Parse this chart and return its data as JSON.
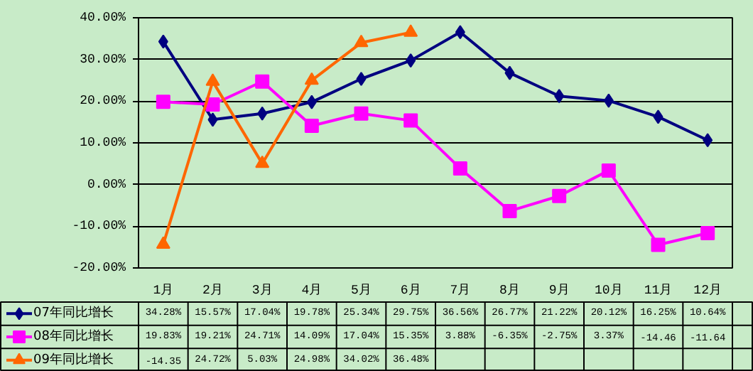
{
  "chart_data": {
    "type": "line",
    "categories": [
      "1月",
      "2月",
      "3月",
      "4月",
      "5月",
      "6月",
      "7月",
      "8月",
      "9月",
      "10月",
      "11月",
      "12月"
    ],
    "series": [
      {
        "name": "07年同比增长",
        "color": "#000080",
        "marker": "diamond",
        "values": [
          34.28,
          15.57,
          17.04,
          19.78,
          25.34,
          29.75,
          36.56,
          26.77,
          21.22,
          20.12,
          16.25,
          10.64
        ],
        "value_labels": [
          "34.28%",
          "15.57%",
          "17.04%",
          "19.78%",
          "25.34%",
          "29.75%",
          "36.56%",
          "26.77%",
          "21.22%",
          "20.12%",
          "16.25%",
          "10.64%"
        ]
      },
      {
        "name": "08年同比增长",
        "color": "#ff00ff",
        "marker": "square",
        "values": [
          19.83,
          19.21,
          24.71,
          14.09,
          17.04,
          15.35,
          3.88,
          -6.35,
          -2.75,
          3.37,
          -14.46,
          -11.64
        ],
        "value_labels": [
          "19.83%",
          "19.21%",
          "24.71%",
          "14.09%",
          "17.04%",
          "15.35%",
          "3.88%",
          "-6.35%",
          "-2.75%",
          "3.37%",
          "-14.46",
          "-11.64"
        ]
      },
      {
        "name": "09年同比增长",
        "color": "#ff6600",
        "marker": "triangle",
        "values": [
          -14.35,
          24.72,
          5.03,
          24.98,
          34.02,
          36.48,
          null,
          null,
          null,
          null,
          null,
          null
        ],
        "value_labels": [
          "-14.35",
          "24.72%",
          "5.03%",
          "24.98%",
          "34.02%",
          "36.48%",
          null,
          null,
          null,
          null,
          null,
          null
        ]
      }
    ],
    "ylim": [
      -20,
      40
    ],
    "yticks": [
      {
        "value": -20,
        "label": "-20.00%"
      },
      {
        "value": -10,
        "label": "-10.00%"
      },
      {
        "value": 0,
        "label": "0.00%"
      },
      {
        "value": 10,
        "label": "10.00%"
      },
      {
        "value": 20,
        "label": "20.00%"
      },
      {
        "value": 30,
        "label": "30.00%"
      },
      {
        "value": 40,
        "label": "40.00%"
      }
    ],
    "grid": "y",
    "legend": "bottom",
    "line_style": "solid"
  }
}
